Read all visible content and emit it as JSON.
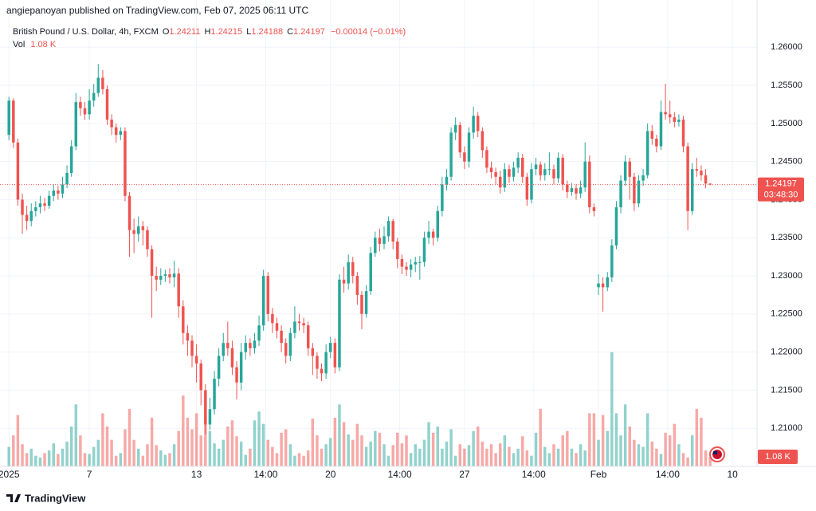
{
  "header": "angiepanoyan published on TradingView.com, Feb 07, 2025 06:11 UTC",
  "footer": "TradingView",
  "chart_data": {
    "type": "candlestick",
    "title": "British Pound / U.S. Dollar, 4h, FXCM",
    "ohlc_labels": [
      "O",
      "H",
      "L",
      "C"
    ],
    "change": "−0.00014 (−0.01%)",
    "volume_name": "Vol",
    "volume_last_label": "1.08 K",
    "countdown": "03:48:30",
    "up_color": "#26a69a",
    "down_color": "#ef5350",
    "grid": true,
    "xlim": [
      -2,
      167.5
    ],
    "xticks": [
      {
        "value": 0,
        "label": "2025"
      },
      {
        "value": 18,
        "label": "7"
      },
      {
        "value": 42,
        "label": "13"
      },
      {
        "value": 57.5,
        "label": "14:00"
      },
      {
        "value": 72,
        "label": "20"
      },
      {
        "value": 87.5,
        "label": "14:00"
      },
      {
        "value": 102,
        "label": "27"
      },
      {
        "value": 117.5,
        "label": "14:00"
      },
      {
        "value": 132,
        "label": "Feb"
      },
      {
        "value": 147.5,
        "label": "14:00"
      },
      {
        "value": 162,
        "label": "10"
      }
    ],
    "ylim": [
      1.205,
      1.2662
    ],
    "yticks": [
      {
        "value": 1.21,
        "label": "1.21000"
      },
      {
        "value": 1.215,
        "label": "1.21500"
      },
      {
        "value": 1.22,
        "label": "1.22000"
      },
      {
        "value": 1.225,
        "label": "1.22500"
      },
      {
        "value": 1.23,
        "label": "1.23000"
      },
      {
        "value": 1.235,
        "label": "1.23500"
      },
      {
        "value": 1.24,
        "label": "1.24000"
      },
      {
        "value": 1.245,
        "label": "1.24500"
      },
      {
        "value": 1.25,
        "label": "1.25000"
      },
      {
        "value": 1.255,
        "label": "1.25500"
      },
      {
        "value": 1.26,
        "label": "1.26000"
      }
    ],
    "vlim": [
      0,
      52.7
    ],
    "open": [
      1.2485,
      1.253,
      1.2475,
      1.24,
      1.238,
      1.2372,
      1.2385,
      1.239,
      1.2395,
      1.2392,
      1.2405,
      1.2412,
      1.2408,
      1.242,
      1.2435,
      1.247,
      1.2528,
      1.252,
      1.2512,
      1.253,
      1.254,
      1.256,
      1.2545,
      1.2505,
      1.2495,
      1.2485,
      1.249,
      1.2405,
      1.236,
      1.2355,
      1.2365,
      1.236,
      1.2335,
      1.23,
      1.2295,
      1.23,
      1.2302,
      1.2298,
      1.2303,
      1.226,
      1.2225,
      1.2215,
      1.2195,
      1.2185,
      1.215,
      1.2105,
      1.2125,
      1.2165,
      1.2195,
      1.2212,
      1.2205,
      1.218,
      1.216,
      1.22,
      1.2212,
      1.2205,
      1.2215,
      1.2235,
      1.23,
      1.225,
      1.2238,
      1.2228,
      1.2212,
      1.2195,
      1.2225,
      1.224,
      1.2238,
      1.2235,
      1.2205,
      1.2195,
      1.2178,
      1.2172,
      1.22,
      1.2212,
      1.218,
      1.2295,
      1.229,
      1.2318,
      1.23,
      1.2275,
      1.225,
      1.228,
      1.233,
      1.235,
      1.2342,
      1.2352,
      1.2372,
      1.2345,
      1.2322,
      1.2312,
      1.2308,
      1.2315,
      1.2318,
      1.2318,
      1.235,
      1.2358,
      1.235,
      1.2385,
      1.242,
      1.243,
      1.2488,
      1.2498,
      1.2462,
      1.245,
      1.2488,
      1.251,
      1.249,
      1.2465,
      1.2442,
      1.2436,
      1.243,
      1.2416,
      1.244,
      1.243,
      1.2442,
      1.2455,
      1.243,
      1.24,
      1.244,
      1.2446,
      1.2432,
      1.244,
      1.244,
      1.2428,
      1.2455,
      1.242,
      1.241,
      1.2415,
      1.2408,
      1.2416,
      1.245,
      1.239,
      1.2285,
      1.229,
      1.2285,
      1.2298,
      1.234,
      1.239,
      1.2425,
      1.245,
      1.243,
      1.2395,
      1.2425,
      1.2432,
      1.249,
      1.248,
      1.247,
      1.2515,
      1.2512,
      1.2508,
      1.2502,
      1.2505,
      1.247,
      1.2385,
      1.244,
      1.2438,
      1.2432,
      1.24211
    ],
    "high": [
      1.2535,
      1.2533,
      1.248,
      1.2408,
      1.2392,
      1.2395,
      1.2398,
      1.2405,
      1.2402,
      1.2412,
      1.242,
      1.2418,
      1.243,
      1.2445,
      1.2478,
      1.254,
      1.2535,
      1.2528,
      1.2545,
      1.2552,
      1.2578,
      1.257,
      1.255,
      1.2512,
      1.25,
      1.2495,
      1.2495,
      1.241,
      1.2375,
      1.2378,
      1.2372,
      1.2365,
      1.234,
      1.2312,
      1.231,
      1.2308,
      1.231,
      1.232,
      1.231,
      1.2268,
      1.2235,
      1.2222,
      1.221,
      1.219,
      1.2158,
      1.214,
      1.2175,
      1.2205,
      1.2225,
      1.224,
      1.2215,
      1.2188,
      1.2212,
      1.2222,
      1.2218,
      1.2225,
      1.2248,
      1.2308,
      1.2305,
      1.2258,
      1.2245,
      1.2235,
      1.2218,
      1.2232,
      1.226,
      1.225,
      1.2245,
      1.224,
      1.2212,
      1.22,
      1.2185,
      1.221,
      1.222,
      1.2218,
      1.2302,
      1.2312,
      1.2328,
      1.2325,
      1.2305,
      1.228,
      1.2288,
      1.2338,
      1.2358,
      1.2362,
      1.2365,
      1.2378,
      1.2375,
      1.235,
      1.2328,
      1.2318,
      1.2322,
      1.2325,
      1.2326,
      1.2358,
      1.2372,
      1.2362,
      1.2392,
      1.243,
      1.244,
      1.2495,
      1.2508,
      1.2502,
      1.247,
      1.2495,
      1.2522,
      1.2515,
      1.2495,
      1.247,
      1.245,
      1.2442,
      1.2438,
      1.2448,
      1.2446,
      1.245,
      1.2462,
      1.246,
      1.2435,
      1.2448,
      1.2455,
      1.245,
      1.2448,
      1.2462,
      1.2446,
      1.2462,
      1.246,
      1.2425,
      1.2422,
      1.242,
      1.2425,
      1.2475,
      1.2458,
      1.2395,
      1.2302,
      1.2298,
      1.2305,
      1.2348,
      1.2398,
      1.2432,
      1.2458,
      1.2455,
      1.2435,
      1.2432,
      1.244,
      1.25,
      1.2498,
      1.2485,
      1.253,
      1.2552,
      1.253,
      1.2515,
      1.2512,
      1.251,
      1.2475,
      1.2448,
      1.2455,
      1.2445,
      1.244,
      1.24215
    ],
    "low": [
      1.2478,
      1.2468,
      1.2392,
      1.2355,
      1.236,
      1.2365,
      1.2378,
      1.2382,
      1.2385,
      1.2388,
      1.2398,
      1.24,
      1.2402,
      1.2415,
      1.243,
      1.2465,
      1.251,
      1.2505,
      1.2505,
      1.2522,
      1.2535,
      1.2538,
      1.2498,
      1.2485,
      1.2475,
      1.2478,
      1.2398,
      1.2325,
      1.233,
      1.2345,
      1.234,
      1.2325,
      1.2245,
      1.228,
      1.2288,
      1.2292,
      1.229,
      1.2285,
      1.2245,
      1.221,
      1.2195,
      1.218,
      1.216,
      1.213,
      1.2092,
      1.2098,
      1.2118,
      1.2155,
      1.2188,
      1.2195,
      1.217,
      1.2138,
      1.215,
      1.219,
      1.2195,
      1.2198,
      1.2208,
      1.2228,
      1.224,
      1.2225,
      1.2218,
      1.22,
      1.2185,
      1.2188,
      1.2218,
      1.2228,
      1.2225,
      1.2195,
      1.217,
      1.2165,
      1.2162,
      1.2165,
      1.2192,
      1.2172,
      1.2175,
      1.2278,
      1.2282,
      1.229,
      1.2262,
      1.223,
      1.2245,
      1.2275,
      1.2325,
      1.2332,
      1.2335,
      1.2345,
      1.2335,
      1.231,
      1.2302,
      1.23,
      1.2298,
      1.2305,
      1.2295,
      1.2312,
      1.2342,
      1.234,
      1.2345,
      1.2378,
      1.2412,
      1.2425,
      1.2478,
      1.2455,
      1.244,
      1.2442,
      1.248,
      1.2482,
      1.2455,
      1.2435,
      1.2428,
      1.242,
      1.2408,
      1.241,
      1.2422,
      1.2424,
      1.2435,
      1.2422,
      1.2392,
      1.2395,
      1.2432,
      1.2425,
      1.2425,
      1.2432,
      1.242,
      1.2422,
      1.2412,
      1.2402,
      1.2405,
      1.24,
      1.2402,
      1.241,
      1.2382,
      1.2378,
      1.2275,
      1.2253,
      1.228,
      1.2292,
      1.2335,
      1.2382,
      1.2418,
      1.24,
      1.2385,
      1.239,
      1.2418,
      1.2428,
      1.2472,
      1.2462,
      1.2465,
      1.2505,
      1.25,
      1.2495,
      1.2496,
      1.2462,
      1.236,
      1.238,
      1.243,
      1.2425,
      1.2415,
      1.24188
    ],
    "close": [
      1.253,
      1.2475,
      1.24,
      1.238,
      1.2372,
      1.2385,
      1.239,
      1.2395,
      1.2392,
      1.2405,
      1.2412,
      1.2408,
      1.242,
      1.2435,
      1.247,
      1.2528,
      1.252,
      1.2512,
      1.253,
      1.254,
      1.256,
      1.2545,
      1.2505,
      1.2495,
      1.2485,
      1.249,
      1.2405,
      1.236,
      1.2355,
      1.2365,
      1.236,
      1.2335,
      1.23,
      1.2295,
      1.23,
      1.2302,
      1.2298,
      1.2303,
      1.226,
      1.2225,
      1.2215,
      1.2195,
      1.2185,
      1.215,
      1.2105,
      1.2125,
      1.2165,
      1.2195,
      1.2212,
      1.2205,
      1.218,
      1.216,
      1.22,
      1.2212,
      1.2205,
      1.2215,
      1.2235,
      1.23,
      1.225,
      1.2238,
      1.2228,
      1.2212,
      1.2195,
      1.2225,
      1.224,
      1.2238,
      1.2235,
      1.2205,
      1.2195,
      1.2178,
      1.2172,
      1.22,
      1.2212,
      1.218,
      1.2295,
      1.229,
      1.2318,
      1.23,
      1.2275,
      1.225,
      1.228,
      1.233,
      1.235,
      1.2342,
      1.2352,
      1.2372,
      1.2345,
      1.2322,
      1.2312,
      1.2308,
      1.2315,
      1.2318,
      1.2318,
      1.235,
      1.2358,
      1.235,
      1.2385,
      1.242,
      1.243,
      1.2488,
      1.2498,
      1.2462,
      1.245,
      1.2488,
      1.251,
      1.249,
      1.2465,
      1.2442,
      1.2436,
      1.243,
      1.2416,
      1.244,
      1.243,
      1.2442,
      1.2455,
      1.243,
      1.24,
      1.244,
      1.2446,
      1.2432,
      1.244,
      1.244,
      1.2428,
      1.2455,
      1.242,
      1.241,
      1.2415,
      1.2408,
      1.2416,
      1.245,
      1.239,
      1.2385,
      1.229,
      1.2285,
      1.2298,
      1.234,
      1.239,
      1.2425,
      1.245,
      1.243,
      1.2395,
      1.2425,
      1.2432,
      1.249,
      1.248,
      1.247,
      1.2515,
      1.2512,
      1.2508,
      1.2502,
      1.2505,
      1.247,
      1.2385,
      1.244,
      1.2438,
      1.2432,
      1.24211,
      1.24197
    ],
    "volume": [
      2.2,
      3.5,
      5.8,
      2.5,
      1.5,
      2.0,
      1.2,
      1.0,
      1.5,
      1.8,
      2.6,
      1.4,
      2.0,
      2.8,
      4.5,
      7.0,
      3.5,
      1.5,
      1.4,
      2.2,
      3.0,
      6.0,
      4.5,
      3.0,
      1.2,
      1.5,
      4.2,
      6.5,
      3.0,
      2.0,
      1.2,
      2.5,
      5.5,
      2.4,
      1.8,
      1.3,
      1.5,
      2.5,
      4.0,
      8.0,
      5.5,
      4.2,
      6.0,
      3.5,
      5.5,
      4.0,
      2.6,
      2.0,
      3.0,
      4.5,
      5.2,
      3.4,
      2.8,
      1.3,
      2.0,
      5.2,
      6.2,
      4.8,
      3.0,
      2.2,
      1.5,
      3.8,
      4.2,
      2.5,
      1.2,
      1.5,
      1.2,
      1.8,
      5.4,
      3.5,
      2.0,
      2.5,
      3.2,
      5.5,
      7.0,
      5.0,
      3.6,
      3.0,
      4.8,
      3.5,
      2.2,
      2.8,
      4.0,
      3.8,
      2.5,
      1.2,
      2.4,
      3.8,
      2.6,
      3.5,
      1.5,
      2.5,
      2.0,
      3.0,
      5.0,
      3.8,
      4.5,
      2.0,
      2.8,
      4.2,
      1.2,
      2.5,
      2.0,
      2.4,
      4.0,
      4.5,
      2.8,
      2.0,
      2.5,
      1.5,
      2.6,
      3.5,
      2.2,
      1.5,
      2.0,
      3.4,
      1.8,
      1.2,
      3.8,
      6.5,
      2.2,
      1.5,
      2.5,
      2.0,
      3.5,
      4.0,
      2.0,
      1.5,
      2.5,
      1.8,
      6.0,
      6.0,
      3.0,
      5.8,
      4.0,
      12.9,
      6.0,
      3.5,
      7.0,
      4.5,
      3.0,
      2.5,
      2.2,
      6.0,
      2.8,
      2.0,
      1.4,
      3.8,
      3.5,
      4.8,
      2.5,
      1.5,
      1.0,
      3.5,
      6.5,
      5.5,
      1.8,
      1.08
    ]
  }
}
